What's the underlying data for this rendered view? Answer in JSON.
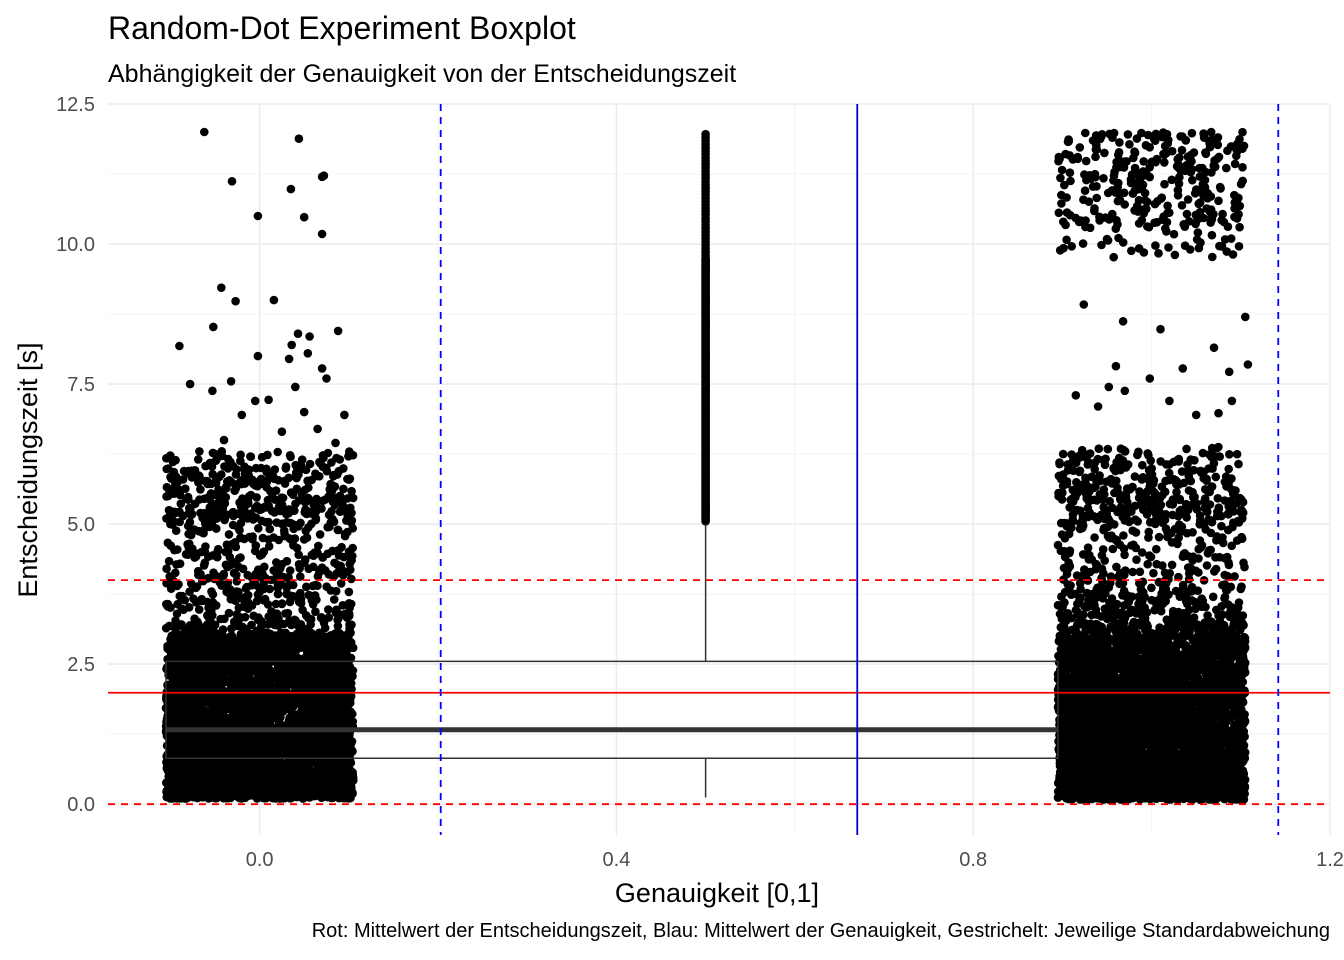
{
  "chart_data": {
    "type": "boxplot",
    "title": "Random-Dot Experiment Boxplot",
    "subtitle": "Abhängigkeit der Genauigkeit von der Entscheidungszeit",
    "xlabel": "Genauigkeit [0,1]",
    "ylabel": "Entscheidungszeit [s]",
    "caption": "Rot: Mittelwert der Entscheidungszeit, Blau: Mittelwert der Genauigkeit, Gestrichelt: Jeweilige Standardabweichung",
    "xlim": [
      -0.17,
      1.2
    ],
    "ylim": [
      -0.55,
      12.5
    ],
    "x_ticks": [
      0.0,
      0.4,
      0.8,
      1.2
    ],
    "x_tick_labels": [
      "0.0",
      "0.4",
      "0.8",
      "1.2"
    ],
    "y_ticks": [
      0.0,
      2.5,
      5.0,
      7.5,
      10.0,
      12.5
    ],
    "y_tick_labels": [
      "0.0",
      "2.5",
      "5.0",
      "7.5",
      "10.0",
      "12.5"
    ],
    "grid": true,
    "boxplot": {
      "x_center": 0.5,
      "x_from": -0.105,
      "x_to": 0.895,
      "q1": 0.82,
      "median": 1.33,
      "q3": 2.55,
      "whisker_low": 0.12,
      "whisker_high": 5.0,
      "outlier_range": [
        5.05,
        12.0
      ]
    },
    "jitter_groups": [
      {
        "x": 0.0,
        "width": 0.105,
        "dense_range": [
          0.1,
          3.0
        ],
        "mid_range": [
          3.0,
          6.3
        ],
        "sparse_points": [
          [
            -0.062,
            12.0
          ],
          [
            0.044,
            11.88
          ],
          [
            -0.031,
            11.12
          ],
          [
            0.035,
            10.98
          ],
          [
            0.07,
            11.2
          ],
          [
            0.072,
            11.22
          ],
          [
            -0.002,
            10.5
          ],
          [
            0.05,
            10.48
          ],
          [
            0.07,
            10.18
          ],
          [
            -0.043,
            9.22
          ],
          [
            -0.027,
            8.98
          ],
          [
            0.016,
            9.0
          ],
          [
            -0.052,
            8.52
          ],
          [
            0.088,
            8.45
          ],
          [
            -0.09,
            8.18
          ],
          [
            0.043,
            8.4
          ],
          [
            0.056,
            8.35
          ],
          [
            0.036,
            8.2
          ],
          [
            -0.002,
            8.0
          ],
          [
            0.054,
            8.05
          ],
          [
            0.033,
            7.95
          ],
          [
            0.07,
            7.78
          ],
          [
            -0.078,
            7.5
          ],
          [
            -0.032,
            7.55
          ],
          [
            -0.053,
            7.38
          ],
          [
            0.04,
            7.45
          ],
          [
            0.075,
            7.6
          ],
          [
            -0.005,
            7.2
          ],
          [
            0.01,
            7.22
          ],
          [
            0.05,
            7.0
          ],
          [
            -0.02,
            6.95
          ],
          [
            0.095,
            6.95
          ],
          [
            0.025,
            6.65
          ],
          [
            0.065,
            6.7
          ],
          [
            -0.04,
            6.5
          ],
          [
            0.085,
            6.45
          ]
        ]
      },
      {
        "x": 1.0,
        "width": 0.105,
        "dense_range": [
          0.08,
          3.0
        ],
        "mid_range": [
          3.0,
          6.4
        ],
        "cluster_range": [
          9.75,
          12.0
        ],
        "sparse_points": [
          [
            0.924,
            8.92
          ],
          [
            0.968,
            8.62
          ],
          [
            1.01,
            8.48
          ],
          [
            1.07,
            8.15
          ],
          [
            1.105,
            8.7
          ],
          [
            0.96,
            7.82
          ],
          [
            1.035,
            7.78
          ],
          [
            0.952,
            7.45
          ],
          [
            0.998,
            7.6
          ],
          [
            1.108,
            7.85
          ],
          [
            1.087,
            7.72
          ],
          [
            0.915,
            7.3
          ],
          [
            0.94,
            7.1
          ],
          [
            0.97,
            7.38
          ],
          [
            1.02,
            7.2
          ],
          [
            1.05,
            6.95
          ],
          [
            1.075,
            6.98
          ],
          [
            1.09,
            7.2
          ],
          [
            1.045,
            0.12
          ]
        ]
      }
    ],
    "reference_lines": [
      {
        "orientation": "horizontal",
        "value": 1.99,
        "color": "#ff0000",
        "style": "solid"
      },
      {
        "orientation": "horizontal",
        "value": 4.0,
        "color": "#ff0000",
        "style": "dashed"
      },
      {
        "orientation": "horizontal",
        "value": 0.0,
        "color": "#ff0000",
        "style": "dashed"
      },
      {
        "orientation": "vertical",
        "value": 0.67,
        "color": "#0000cc",
        "style": "solid"
      },
      {
        "orientation": "vertical",
        "value": 0.203,
        "color": "#0000ff",
        "style": "dashed"
      },
      {
        "orientation": "vertical",
        "value": 1.142,
        "color": "#0000ff",
        "style": "dashed"
      }
    ],
    "colors": {
      "points": "#000000",
      "box": "#333333",
      "grid_major": "#ebebeb",
      "grid_minor": "#f4f4f4",
      "tick_label": "#4d4d4d"
    }
  }
}
